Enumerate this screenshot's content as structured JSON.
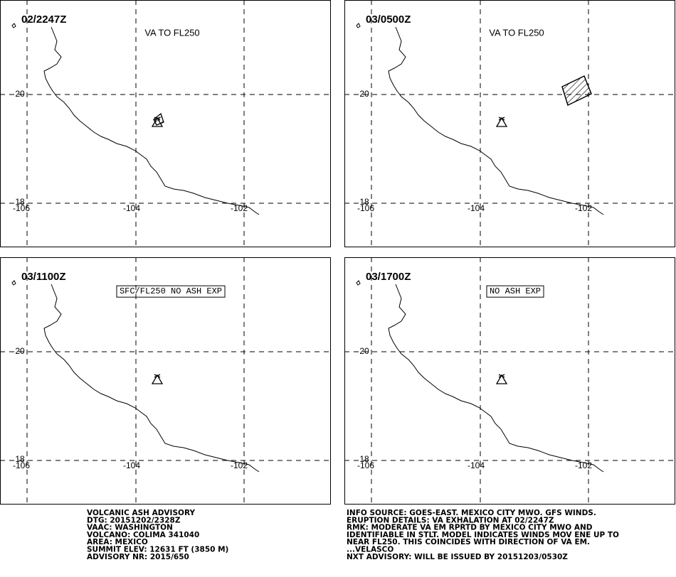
{
  "panels": [
    {
      "time": "02/2247Z",
      "annotation": "VA TO FL250",
      "lat_labels": [
        "20",
        "18"
      ],
      "lon_labels": [
        "-106",
        "-104",
        "-102"
      ]
    },
    {
      "time": "03/0500Z",
      "annotation": "VA TO FL250",
      "lat_labels": [
        "20",
        "18"
      ],
      "lon_labels": [
        "-106",
        "-104",
        "-102"
      ]
    },
    {
      "time": "03/1100Z",
      "annotation": "SFC/FL250 NO ASH EXP",
      "lat_labels": [
        "20",
        "18"
      ],
      "lon_labels": [
        "-106",
        "-104",
        "-102"
      ]
    },
    {
      "time": "03/1700Z",
      "annotation": "NO ASH EXP",
      "lat_labels": [
        "20",
        "18"
      ],
      "lon_labels": [
        "-106",
        "-104",
        "-102"
      ]
    }
  ],
  "advisory": {
    "left": [
      "VOLCANIC ASH ADVISORY",
      "DTG: 20151202/2328Z",
      "VAAC: WASHINGTON",
      "VOLCANO: COLIMA 341040",
      "AREA: MEXICO",
      "SUMMIT ELEV: 12631 FT (3850 M)",
      "ADVISORY NR: 2015/650"
    ],
    "right": [
      "INFO SOURCE: GOES-EAST. MEXICO CITY MWO. GFS WINDS.",
      "ERUPTION DETAILS: VA EXHALATION AT 02/2247Z",
      "RMK: MODERATE VA EM RPRTD BY MEXICO CITY MWO AND",
      "IDENTIFIABLE IN STLT. MODEL INDICATES WINDS MOV ENE UP TO",
      "NEAR FL250. THIS COINCIDES WITH DIRECTION OF VA EM.",
      "...VELASCO",
      "NXT ADVISORY: WILL BE ISSUED BY 20151203/0530Z"
    ]
  }
}
